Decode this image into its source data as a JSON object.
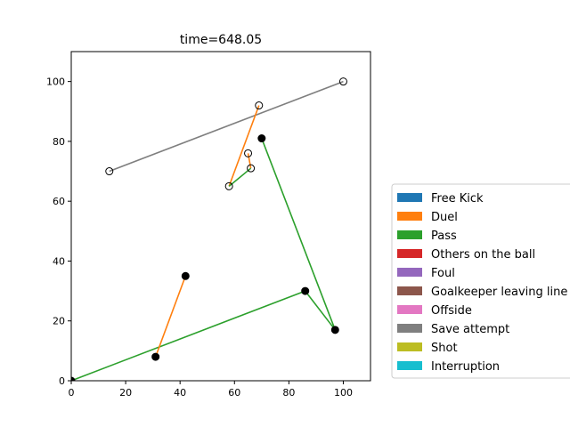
{
  "chart_data": {
    "type": "scatter",
    "title": "time=648.05",
    "xlabel": "",
    "ylabel": "",
    "xlim": [
      0,
      110
    ],
    "ylim": [
      0,
      110
    ],
    "xticks": [
      0,
      20,
      40,
      60,
      80,
      100
    ],
    "yticks": [
      0,
      20,
      40,
      60,
      80,
      100
    ],
    "legend_position": "right",
    "legend": [
      {
        "label": "Free Kick",
        "color": "#1f77b4"
      },
      {
        "label": "Duel",
        "color": "#ff7f0e"
      },
      {
        "label": "Pass",
        "color": "#2ca02c"
      },
      {
        "label": "Others on the ball",
        "color": "#d62728"
      },
      {
        "label": "Foul",
        "color": "#9467bd"
      },
      {
        "label": "Goalkeeper leaving line",
        "color": "#8c564b"
      },
      {
        "label": "Offside",
        "color": "#e377c2"
      },
      {
        "label": "Save attempt",
        "color": "#7f7f7f"
      },
      {
        "label": "Shot",
        "color": "#bcbd22"
      },
      {
        "label": "Interruption",
        "color": "#17becf"
      }
    ],
    "segments": [
      {
        "event": "Save attempt",
        "color": "#7f7f7f",
        "from": [
          14,
          70
        ],
        "to": [
          100,
          100
        ]
      },
      {
        "event": "Duel",
        "color": "#ff7f0e",
        "from": [
          58,
          65
        ],
        "to": [
          69,
          92
        ]
      },
      {
        "event": "Duel",
        "color": "#ff7f0e",
        "from": [
          65,
          76
        ],
        "to": [
          66,
          71
        ]
      },
      {
        "event": "Pass",
        "color": "#2ca02c",
        "from": [
          58,
          65
        ],
        "to": [
          66,
          71
        ]
      },
      {
        "event": "Pass",
        "color": "#2ca02c",
        "from": [
          70,
          81
        ],
        "to": [
          97,
          17
        ]
      },
      {
        "event": "Pass",
        "color": "#2ca02c",
        "from": [
          97,
          17
        ],
        "to": [
          86,
          30
        ]
      },
      {
        "event": "Pass",
        "color": "#2ca02c",
        "from": [
          86,
          30
        ],
        "to": [
          0,
          0
        ]
      },
      {
        "event": "Duel",
        "color": "#ff7f0e",
        "from": [
          31,
          8
        ],
        "to": [
          42,
          35
        ]
      }
    ],
    "points_open": [
      [
        14,
        70
      ],
      [
        100,
        100
      ],
      [
        69,
        92
      ],
      [
        65,
        76
      ],
      [
        66,
        71
      ],
      [
        58,
        65
      ]
    ],
    "points_filled": [
      [
        70,
        81
      ],
      [
        97,
        17
      ],
      [
        86,
        30
      ],
      [
        42,
        35
      ],
      [
        31,
        8
      ],
      [
        0,
        0
      ]
    ]
  }
}
